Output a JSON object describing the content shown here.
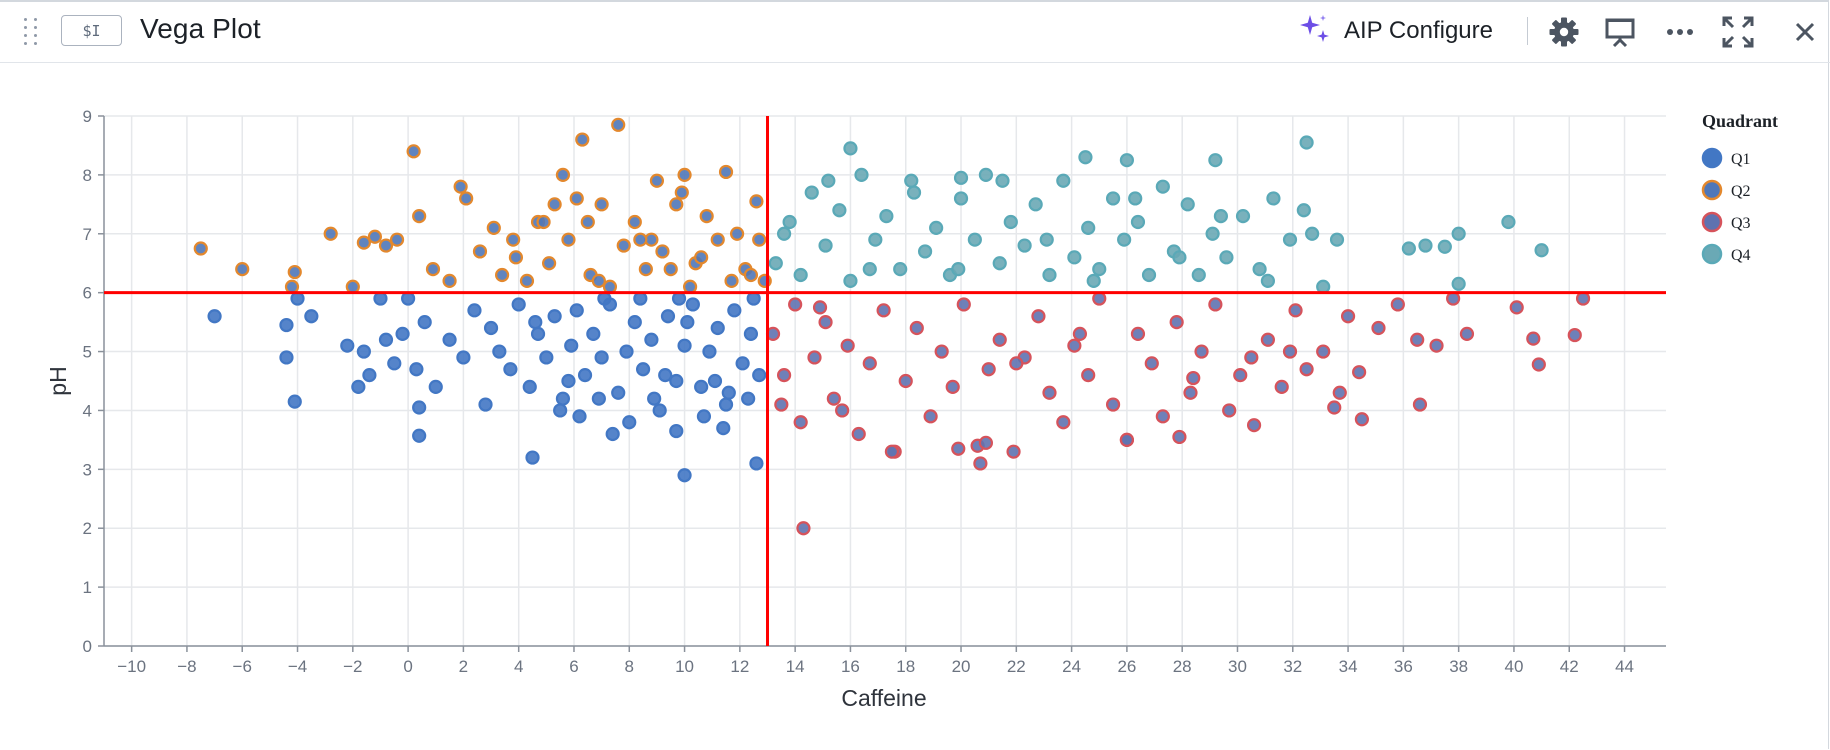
{
  "header": {
    "var_chip": "$I",
    "title": "Vega Plot",
    "aip_label": "AIP Configure",
    "icons": [
      "drag-handle-icon",
      "sparkle-icon",
      "gear-icon",
      "present-icon",
      "more-icon",
      "fullscreen-icon",
      "close-icon"
    ]
  },
  "colors": {
    "Q1": "#4277c4",
    "Q2": "#e3882d",
    "Q3": "#d6535b",
    "Q4": "#5aa9b7",
    "threshold": "#ff0000",
    "aip": "#6c4ee6"
  },
  "chart_data": {
    "type": "scatter",
    "xlabel": "Caffeine",
    "ylabel": "pH",
    "xlim": [
      -11,
      45.5
    ],
    "ylim": [
      0,
      9
    ],
    "x_ticks": [
      -10,
      -8,
      -6,
      -4,
      -2,
      0,
      2,
      4,
      6,
      8,
      10,
      12,
      14,
      16,
      18,
      20,
      22,
      24,
      26,
      28,
      30,
      32,
      34,
      36,
      38,
      40,
      42,
      44
    ],
    "y_ticks": [
      0,
      1,
      2,
      3,
      4,
      5,
      6,
      7,
      8,
      9
    ],
    "grid": true,
    "legend": {
      "title": "Quadrant",
      "placement": "right"
    },
    "thresholds": {
      "x": 13,
      "y": 6
    },
    "series": [
      {
        "name": "Q1",
        "x": [
          -7,
          -4.4,
          -4,
          -3.5,
          -4.4,
          -4.1,
          -2.2,
          -1.8,
          -1.6,
          -1.4,
          -1,
          -0.8,
          -0.5,
          -0.2,
          0,
          0.3,
          0.4,
          0.6,
          1,
          1.5,
          2,
          2.4,
          2.8,
          3,
          3.3,
          3.7,
          4,
          4.4,
          4.7,
          5,
          5.3,
          5.6,
          5.9,
          6.1,
          6.4,
          6.7,
          7,
          7.3,
          7.6,
          7.9,
          8.2,
          8.5,
          8.8,
          9.1,
          9.4,
          9.7,
          10,
          10.3,
          10.6,
          10.9,
          11.2,
          11.5,
          11.8,
          12.1,
          12.4,
          12.7,
          5.5,
          6.2,
          7.1,
          8,
          8.9,
          9.8,
          10.7,
          11.6,
          12.5,
          4.6,
          5.8,
          6.9,
          8.4,
          9.3,
          10.1,
          11.1,
          12.3,
          4.5,
          10,
          12.6,
          0.4,
          7.4,
          9.7,
          11.4
        ],
        "y": [
          5.6,
          5.45,
          5.9,
          5.6,
          4.9,
          4.15,
          5.1,
          4.4,
          5.0,
          4.6,
          5.9,
          5.2,
          4.8,
          5.3,
          5.9,
          4.7,
          4.05,
          5.5,
          4.4,
          5.2,
          4.9,
          5.7,
          4.1,
          5.4,
          5.0,
          4.7,
          5.8,
          4.4,
          5.3,
          4.9,
          5.6,
          4.2,
          5.1,
          5.7,
          4.6,
          5.3,
          4.9,
          5.8,
          4.3,
          5.0,
          5.5,
          4.7,
          5.2,
          4.0,
          5.6,
          4.5,
          5.1,
          5.8,
          4.4,
          5.0,
          5.4,
          4.1,
          5.7,
          4.8,
          5.3,
          4.6,
          4.0,
          3.9,
          5.9,
          3.8,
          4.2,
          5.9,
          3.9,
          4.3,
          5.9,
          5.5,
          4.5,
          4.2,
          5.9,
          4.6,
          5.5,
          4.5,
          4.2,
          3.2,
          2.9,
          3.1,
          3.57,
          3.6,
          3.65,
          3.7
        ]
      },
      {
        "name": "Q2",
        "x": [
          -7.5,
          -6,
          -4.2,
          -4.1,
          -2.8,
          -2,
          -1.6,
          -1.2,
          -0.8,
          -0.4,
          0.2,
          0.4,
          0.9,
          1.5,
          1.9,
          2.1,
          2.6,
          3.1,
          3.4,
          3.8,
          4.3,
          4.7,
          5.1,
          5.6,
          5.8,
          6.3,
          6.6,
          7,
          7.6,
          7.8,
          8.2,
          8.6,
          9,
          9.2,
          9.7,
          10,
          10.4,
          10.8,
          11.2,
          11.5,
          11.9,
          12.2,
          12.6,
          12.9,
          5.3,
          6.9,
          8.8,
          10.6,
          12.4,
          4.9,
          7.3,
          9.5,
          11.7,
          6.1,
          8.4,
          10.2,
          12.7,
          3.9,
          6.5,
          9.9
        ],
        "y": [
          6.75,
          6.4,
          6.1,
          6.35,
          7.0,
          6.1,
          6.85,
          6.95,
          6.8,
          6.9,
          8.4,
          7.3,
          6.4,
          6.2,
          7.8,
          7.6,
          6.7,
          7.1,
          6.3,
          6.9,
          6.2,
          7.2,
          6.5,
          8.0,
          6.9,
          8.6,
          6.3,
          7.5,
          8.85,
          6.8,
          7.2,
          6.4,
          7.9,
          6.7,
          7.5,
          8.0,
          6.5,
          7.3,
          6.9,
          8.05,
          7.0,
          6.4,
          7.55,
          6.2,
          7.5,
          6.2,
          6.9,
          6.6,
          6.3,
          7.2,
          6.1,
          6.4,
          6.2,
          7.6,
          6.9,
          6.1,
          6.9,
          6.6,
          7.2,
          7.7
        ]
      },
      {
        "name": "Q3",
        "x": [
          13.2,
          13.6,
          14,
          14.3,
          14.2,
          14.7,
          15.1,
          15.4,
          15.9,
          16.3,
          16.7,
          17.2,
          17.6,
          18,
          18.4,
          18.9,
          19.3,
          19.7,
          20.1,
          20.6,
          21,
          21.4,
          21.9,
          22.3,
          22.8,
          23.2,
          23.7,
          24.1,
          24.6,
          25,
          25.5,
          26,
          26.4,
          26.9,
          27.3,
          27.8,
          28.3,
          28.7,
          29.2,
          29.7,
          30.1,
          30.6,
          31.1,
          31.6,
          32.1,
          32.5,
          33.1,
          33.5,
          34,
          34.5,
          35.1,
          35.8,
          36.5,
          37.2,
          37.8,
          38.3,
          40.1,
          40.7,
          40.9,
          42.2,
          42.5,
          13.5,
          15.7,
          17.5,
          19.9,
          20.7,
          20.9,
          22,
          26,
          27.9,
          30.5,
          33.7,
          36.6,
          14.9,
          24.3,
          28.4,
          31.9,
          34.4
        ],
        "y": [
          5.3,
          4.6,
          5.8,
          2.0,
          3.8,
          4.9,
          5.5,
          4.2,
          5.1,
          3.6,
          4.8,
          5.7,
          3.3,
          4.5,
          5.4,
          3.9,
          5.0,
          4.4,
          5.8,
          3.4,
          4.7,
          5.2,
          3.3,
          4.9,
          5.6,
          4.3,
          3.8,
          5.1,
          4.6,
          5.9,
          4.1,
          3.5,
          5.3,
          4.8,
          3.9,
          5.5,
          4.3,
          5.0,
          5.8,
          4.0,
          4.6,
          3.75,
          5.2,
          4.4,
          5.7,
          4.7,
          5.0,
          4.05,
          5.6,
          3.85,
          5.4,
          5.8,
          5.2,
          5.1,
          5.9,
          5.3,
          5.75,
          5.22,
          4.78,
          5.28,
          5.9,
          4.1,
          4.0,
          3.3,
          3.35,
          3.1,
          3.45,
          4.8,
          3.5,
          3.55,
          4.9,
          4.3,
          4.1,
          5.75,
          5.3,
          4.55,
          5.0,
          4.65
        ]
      },
      {
        "name": "Q4",
        "x": [
          13.3,
          13.8,
          14.2,
          14.6,
          15.1,
          15.6,
          16,
          16.4,
          16.9,
          17.3,
          17.8,
          18.2,
          18.7,
          19.1,
          19.6,
          20,
          20.5,
          20.9,
          21.4,
          21.8,
          22.3,
          22.7,
          23.2,
          23.7,
          24.1,
          24.6,
          25,
          25.5,
          25.9,
          26.4,
          26.8,
          27.3,
          27.7,
          28.2,
          28.6,
          29.1,
          29.6,
          30.2,
          30.8,
          31.3,
          31.9,
          32.4,
          33.1,
          33.6,
          36.2,
          36.8,
          37.5,
          38,
          39.8,
          41,
          13.6,
          15.2,
          16.7,
          18.3,
          19.9,
          21.5,
          23.1,
          24.8,
          26.3,
          27.9,
          29.4,
          31.1,
          32.7,
          38,
          16,
          24.5,
          32.5,
          29.2,
          26,
          20
        ],
        "y": [
          6.5,
          7.2,
          6.3,
          7.7,
          6.8,
          7.4,
          6.2,
          8.0,
          6.9,
          7.3,
          6.4,
          7.9,
          6.7,
          7.1,
          6.3,
          7.6,
          6.9,
          8.0,
          6.5,
          7.2,
          6.8,
          7.5,
          6.3,
          7.9,
          6.6,
          7.1,
          6.4,
          7.6,
          6.9,
          7.2,
          6.3,
          7.8,
          6.7,
          7.5,
          6.3,
          7.0,
          6.6,
          7.3,
          6.4,
          7.6,
          6.9,
          7.4,
          6.1,
          6.9,
          6.75,
          6.8,
          6.78,
          7.0,
          7.2,
          6.72,
          7.0,
          7.9,
          6.4,
          7.7,
          6.4,
          7.9,
          6.9,
          6.2,
          7.6,
          6.6,
          7.3,
          6.2,
          7.0,
          6.15,
          8.45,
          8.3,
          8.55,
          8.25,
          8.25,
          7.95
        ]
      }
    ]
  }
}
